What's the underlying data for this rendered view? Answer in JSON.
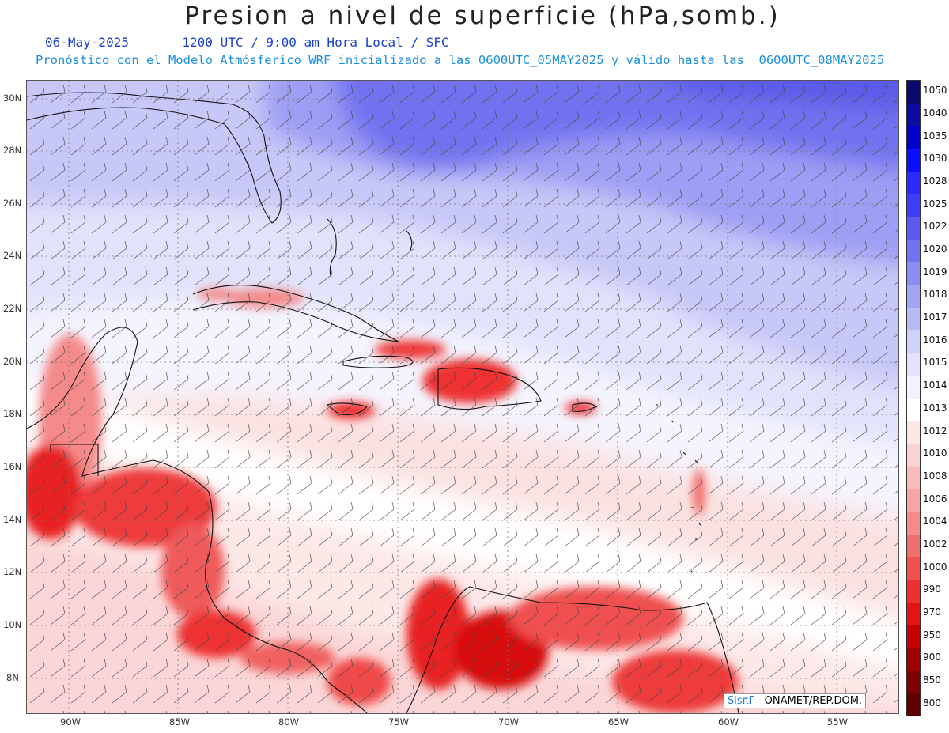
{
  "header": {
    "title": "Presion a nivel de superficie (hPa,somb.)",
    "date": "06-May-2025",
    "valid_time": "1200 UTC / 9:00 am Hora Local / SFC",
    "forecast_note": "Pronóstico con el Modelo Atmósferico WRF inicializado a las 0600UTC_05MAY2025 y válido hasta las  0600UTC_08MAY2025"
  },
  "axes": {
    "lat_ticks": [
      "30N",
      "28N",
      "26N",
      "24N",
      "22N",
      "20N",
      "18N",
      "16N",
      "14N",
      "12N",
      "10N",
      "8N"
    ],
    "lon_ticks": [
      "90W",
      "85W",
      "80W",
      "75W",
      "70W",
      "65W",
      "60W",
      "55W"
    ]
  },
  "colorbar": {
    "levels": [
      "1050",
      "1040",
      "1035",
      "1030",
      "1028",
      "1025",
      "1022",
      "1020",
      "1019",
      "1018",
      "1017",
      "1016",
      "1015",
      "1014",
      "1013",
      "1012",
      "1010",
      "1008",
      "1006",
      "1004",
      "1002",
      "1000",
      "990",
      "970",
      "950",
      "900",
      "850",
      "800"
    ],
    "colors": [
      "#0a0a6e",
      "#0c0c9e",
      "#0000cc",
      "#0a10ff",
      "#2a2aff",
      "#3e3ef8",
      "#5a5af0",
      "#7272f2",
      "#8c8cf4",
      "#a4a4f6",
      "#babaf8",
      "#d0d0fa",
      "#e2e2fc",
      "#f2f2fe",
      "#ffffff",
      "#fde8e8",
      "#fbd2d2",
      "#f9bcbc",
      "#f7a4a4",
      "#f48a8a",
      "#f26e6e",
      "#f05050",
      "#ee3030",
      "#e41414",
      "#c80000",
      "#a00000",
      "#800000",
      "#600000"
    ]
  },
  "credit": {
    "logo": "SisπΓ",
    "text": " - ONAMET/REP.DOM."
  }
}
